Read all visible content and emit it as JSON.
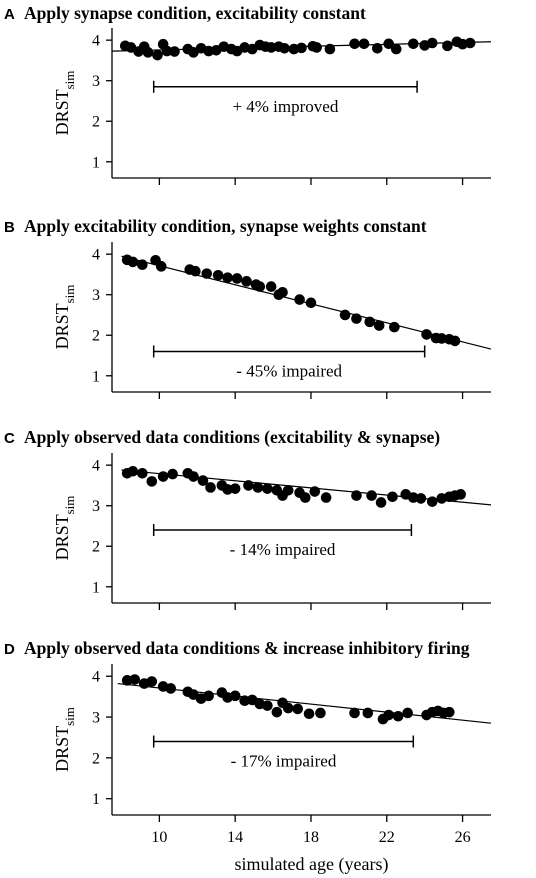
{
  "chart_data": [
    {
      "type": "scatter",
      "panel_letter": "A",
      "title": "Apply synapse condition, excitability constant",
      "ylabel_main": "DRST",
      "ylabel_sub": "sim",
      "xlim": [
        7.5,
        27.5
      ],
      "ylim": [
        0.6,
        4.3
      ],
      "yticks": [
        1,
        2,
        3,
        4
      ],
      "bracket": {
        "x_start": 9.7,
        "x_end": 23.6,
        "y": 2.85
      },
      "annotation": "+ 4% improved",
      "trend": {
        "x": [
          7.5,
          27.5
        ],
        "y": [
          3.73,
          3.96
        ]
      },
      "x": [
        8.2,
        8.5,
        8.9,
        9.2,
        9.4,
        9.9,
        10.2,
        10.4,
        10.8,
        11.5,
        11.8,
        12.2,
        12.6,
        13.0,
        13.4,
        13.8,
        14.1,
        14.5,
        14.9,
        15.3,
        15.6,
        15.9,
        16.3,
        16.6,
        17.1,
        17.5,
        18.1,
        18.3,
        19.0,
        20.3,
        20.8,
        21.5,
        22.1,
        22.5,
        23.4,
        24.0,
        24.4,
        25.2,
        25.7,
        26.0,
        26.4
      ],
      "y": [
        3.86,
        3.82,
        3.72,
        3.84,
        3.7,
        3.63,
        3.9,
        3.73,
        3.72,
        3.78,
        3.7,
        3.8,
        3.73,
        3.75,
        3.84,
        3.78,
        3.73,
        3.82,
        3.78,
        3.88,
        3.84,
        3.82,
        3.84,
        3.8,
        3.78,
        3.81,
        3.85,
        3.82,
        3.78,
        3.91,
        3.91,
        3.8,
        3.91,
        3.78,
        3.91,
        3.87,
        3.93,
        3.86,
        3.96,
        3.9,
        3.93
      ]
    },
    {
      "type": "scatter",
      "panel_letter": "B",
      "title": "Apply excitability condition, synapse weights constant",
      "ylabel_main": "DRST",
      "ylabel_sub": "sim",
      "xlim": [
        7.5,
        27.5
      ],
      "ylim": [
        0.6,
        4.3
      ],
      "yticks": [
        1,
        2,
        3,
        4
      ],
      "bracket": {
        "x_start": 9.7,
        "x_end": 24.0,
        "y": 1.6
      },
      "annotation": "- 45% impaired",
      "trend": {
        "x": [
          8.0,
          27.5
        ],
        "y": [
          3.95,
          1.66
        ]
      },
      "x": [
        8.3,
        8.6,
        9.1,
        9.8,
        10.1,
        11.6,
        11.9,
        12.5,
        13.1,
        13.6,
        14.1,
        14.6,
        15.1,
        15.3,
        15.9,
        16.3,
        16.5,
        17.4,
        18.0,
        19.8,
        20.4,
        21.1,
        21.6,
        22.4,
        24.1,
        24.6,
        24.9,
        25.3,
        25.6
      ],
      "y": [
        3.86,
        3.81,
        3.74,
        3.85,
        3.7,
        3.62,
        3.58,
        3.52,
        3.48,
        3.42,
        3.4,
        3.33,
        3.25,
        3.2,
        3.2,
        3.0,
        3.06,
        2.88,
        2.8,
        2.5,
        2.41,
        2.33,
        2.24,
        2.2,
        2.02,
        1.93,
        1.92,
        1.9,
        1.86
      ]
    },
    {
      "type": "scatter",
      "panel_letter": "C",
      "title": "Apply observed data conditions (excitability & synapse)",
      "ylabel_main": "DRST",
      "ylabel_sub": "sim",
      "xlim": [
        7.5,
        27.5
      ],
      "ylim": [
        0.6,
        4.3
      ],
      "yticks": [
        1,
        2,
        3,
        4
      ],
      "bracket": {
        "x_start": 9.7,
        "x_end": 23.3,
        "y": 2.4
      },
      "annotation": "- 14% impaired",
      "trend": {
        "x": [
          8.0,
          27.5
        ],
        "y": [
          3.88,
          3.02
        ]
      },
      "x": [
        8.3,
        8.6,
        9.1,
        9.6,
        10.2,
        10.7,
        11.5,
        11.8,
        12.3,
        12.7,
        13.3,
        13.6,
        14.0,
        14.7,
        15.2,
        15.7,
        16.2,
        16.5,
        16.8,
        17.4,
        17.7,
        18.2,
        18.8,
        20.4,
        21.2,
        21.7,
        22.3,
        23.0,
        23.4,
        23.8,
        24.4,
        24.9,
        25.3,
        25.6,
        25.9
      ],
      "y": [
        3.8,
        3.85,
        3.8,
        3.6,
        3.72,
        3.78,
        3.8,
        3.72,
        3.62,
        3.45,
        3.5,
        3.4,
        3.42,
        3.5,
        3.45,
        3.42,
        3.38,
        3.25,
        3.38,
        3.32,
        3.2,
        3.35,
        3.2,
        3.25,
        3.25,
        3.08,
        3.22,
        3.28,
        3.2,
        3.18,
        3.1,
        3.18,
        3.22,
        3.25,
        3.28
      ]
    },
    {
      "type": "scatter",
      "panel_letter": "D",
      "title": "Apply observed data conditions & increase inhibitory firing",
      "ylabel_main": "DRST",
      "ylabel_sub": "sim",
      "xlabel": "simulated age (years)",
      "xticks": [
        10,
        14,
        18,
        22,
        26
      ],
      "xlim": [
        7.5,
        27.5
      ],
      "ylim": [
        0.6,
        4.3
      ],
      "yticks": [
        1,
        2,
        3,
        4
      ],
      "bracket": {
        "x_start": 9.7,
        "x_end": 23.4,
        "y": 2.4
      },
      "annotation": "- 17% impaired",
      "trend": {
        "x": [
          7.8,
          27.5
        ],
        "y": [
          3.82,
          2.85
        ]
      },
      "x": [
        8.3,
        8.7,
        9.2,
        9.6,
        10.2,
        10.6,
        11.5,
        11.8,
        12.2,
        12.6,
        13.3,
        13.6,
        14.0,
        14.5,
        14.9,
        15.3,
        15.7,
        16.2,
        16.5,
        16.8,
        17.3,
        17.9,
        18.5,
        20.3,
        21.0,
        21.8,
        22.1,
        22.6,
        23.1,
        24.1,
        24.4,
        24.7,
        25.0,
        25.3
      ],
      "y": [
        3.9,
        3.92,
        3.82,
        3.87,
        3.75,
        3.7,
        3.62,
        3.55,
        3.45,
        3.52,
        3.6,
        3.48,
        3.52,
        3.4,
        3.42,
        3.32,
        3.28,
        3.12,
        3.35,
        3.22,
        3.2,
        3.08,
        3.1,
        3.1,
        3.1,
        2.95,
        3.05,
        3.02,
        3.1,
        3.05,
        3.12,
        3.15,
        3.1,
        3.12
      ]
    }
  ]
}
